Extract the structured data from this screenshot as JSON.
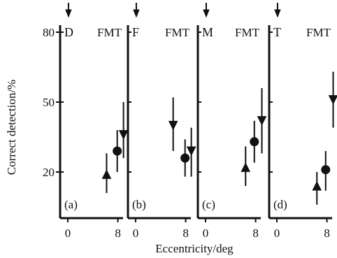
{
  "chart_data": {
    "type": "scatter",
    "ylabel": "Correct detection/%",
    "xlabel": "Eccentricity/deg",
    "ylim": [
      10,
      85
    ],
    "y_ticks": [
      "80",
      "50",
      "20"
    ],
    "y_tick_values": [
      80,
      50,
      20
    ],
    "x_ticks": [
      "0",
      "8"
    ],
    "x_tick_values": [
      0,
      8
    ],
    "xlim": [
      -1,
      9.5
    ],
    "marker_legend": "FMT",
    "panels": [
      {
        "label": "(a)",
        "target": "D",
        "points": [
          {
            "marker": "triangle",
            "x": 6.2,
            "y": 19,
            "err": [
              11,
              28
            ]
          },
          {
            "marker": "circle",
            "x": 7.9,
            "y": 29,
            "err": [
              20,
              38
            ]
          },
          {
            "marker": "inverted-triangle",
            "x": 8.9,
            "y": 36,
            "err": [
              26,
              50
            ]
          }
        ]
      },
      {
        "label": "(b)",
        "target": "F",
        "points": [
          {
            "marker": "inverted-triangle",
            "x": 6.0,
            "y": 40,
            "err": [
              29,
              52
            ]
          },
          {
            "marker": "circle",
            "x": 7.9,
            "y": 26,
            "err": [
              18,
              34
            ]
          },
          {
            "marker": "inverted-triangle",
            "x": 8.9,
            "y": 29,
            "err": [
              18,
              39
            ]
          }
        ]
      },
      {
        "label": "(c)",
        "target": "M",
        "points": [
          {
            "marker": "triangle",
            "x": 6.4,
            "y": 22,
            "err": [
              14,
              31
            ]
          },
          {
            "marker": "circle",
            "x": 7.8,
            "y": 33,
            "err": [
              24,
              42
            ]
          },
          {
            "marker": "inverted-triangle",
            "x": 9.0,
            "y": 42,
            "err": [
              28,
              56
            ]
          }
        ]
      },
      {
        "label": "(d)",
        "target": "T",
        "points": [
          {
            "marker": "triangle",
            "x": 6.4,
            "y": 14,
            "err": [
              6,
              20
            ]
          },
          {
            "marker": "circle",
            "x": 7.8,
            "y": 21,
            "err": [
              12,
              29
            ]
          },
          {
            "marker": "inverted-triangle",
            "x": 9.0,
            "y": 51,
            "err": [
              39,
              63
            ]
          }
        ]
      }
    ]
  }
}
